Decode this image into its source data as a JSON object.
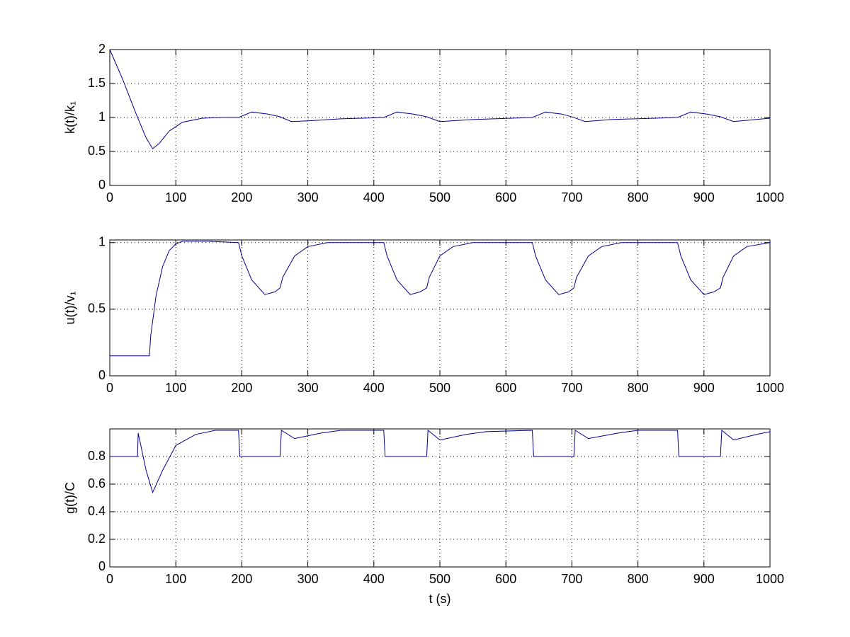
{
  "chart_data": [
    {
      "type": "line",
      "ylabel": "k(t)/k₁",
      "x": [
        0,
        20,
        40,
        55,
        65,
        75,
        90,
        110,
        140,
        170,
        195,
        215,
        240,
        258,
        275,
        300,
        350,
        415,
        435,
        460,
        480,
        500,
        550,
        640,
        660,
        685,
        700,
        720,
        760,
        860,
        880,
        905,
        925,
        945,
        1000
      ],
      "series": [
        {
          "color": "#00008b",
          "values": [
            2,
            1.55,
            1.05,
            0.7,
            0.54,
            0.62,
            0.8,
            0.93,
            0.99,
            1,
            1,
            1.08,
            1.05,
            1.01,
            0.94,
            0.95,
            0.98,
            1,
            1.08,
            1.05,
            1.01,
            0.94,
            0.97,
            1,
            1.08,
            1.05,
            1.01,
            0.94,
            0.97,
            1,
            1.08,
            1.05,
            1.01,
            0.94,
            0.99
          ]
        }
      ],
      "xlim": [
        0,
        1000
      ],
      "ylim": [
        0,
        2
      ],
      "xticks": [
        0,
        100,
        200,
        300,
        400,
        500,
        600,
        700,
        800,
        900,
        1000
      ],
      "yticks": [
        0,
        0.5,
        1,
        1.5,
        2
      ],
      "grid": true
    },
    {
      "type": "line",
      "ylabel": "u(t)/v₁",
      "x": [
        0,
        60,
        62,
        70,
        80,
        90,
        100,
        110,
        150,
        195,
        200,
        215,
        235,
        250,
        258,
        262,
        280,
        300,
        330,
        415,
        420,
        435,
        455,
        470,
        480,
        484,
        500,
        520,
        550,
        640,
        645,
        660,
        680,
        695,
        703,
        707,
        725,
        745,
        775,
        860,
        865,
        880,
        900,
        915,
        925,
        929,
        945,
        965,
        1000
      ],
      "series": [
        {
          "color": "#00008b",
          "values": [
            0.15,
            0.15,
            0.3,
            0.6,
            0.82,
            0.94,
            0.99,
            1.01,
            1.01,
            1,
            0.9,
            0.72,
            0.61,
            0.63,
            0.66,
            0.74,
            0.9,
            0.97,
            1,
            1,
            0.9,
            0.72,
            0.61,
            0.63,
            0.66,
            0.74,
            0.9,
            0.97,
            1,
            1,
            0.9,
            0.72,
            0.61,
            0.63,
            0.66,
            0.74,
            0.9,
            0.97,
            1,
            1,
            0.9,
            0.72,
            0.61,
            0.63,
            0.66,
            0.74,
            0.9,
            0.97,
            1
          ]
        }
      ],
      "xlim": [
        0,
        1000
      ],
      "ylim": [
        0,
        1.02
      ],
      "xticks": [
        0,
        100,
        200,
        300,
        400,
        500,
        600,
        700,
        800,
        900,
        1000
      ],
      "yticks": [
        0,
        0.5,
        1
      ],
      "grid": true
    },
    {
      "type": "line",
      "ylabel": "g(t)/C",
      "xlabel": "t (s)",
      "x": [
        0,
        42,
        43,
        55,
        65,
        80,
        100,
        130,
        160,
        195,
        197,
        258,
        260,
        280,
        320,
        350,
        415,
        417,
        480,
        482,
        500,
        540,
        570,
        640,
        642,
        703,
        705,
        725,
        770,
        800,
        860,
        862,
        925,
        927,
        945,
        980,
        1000
      ],
      "series": [
        {
          "color": "#00008b",
          "values": [
            0.8,
            0.8,
            0.97,
            0.7,
            0.54,
            0.7,
            0.88,
            0.96,
            0.99,
            0.99,
            0.8,
            0.8,
            0.99,
            0.93,
            0.97,
            0.99,
            0.99,
            0.8,
            0.8,
            0.99,
            0.92,
            0.96,
            0.98,
            0.99,
            0.8,
            0.8,
            0.99,
            0.93,
            0.97,
            0.99,
            0.99,
            0.8,
            0.8,
            0.99,
            0.92,
            0.96,
            0.98
          ]
        }
      ],
      "xlim": [
        0,
        1000
      ],
      "ylim": [
        0,
        1
      ],
      "xticks": [
        0,
        100,
        200,
        300,
        400,
        500,
        600,
        700,
        800,
        900,
        1000
      ],
      "yticks": [
        0,
        0.2,
        0.4,
        0.6,
        0.8
      ],
      "grid": true
    }
  ]
}
